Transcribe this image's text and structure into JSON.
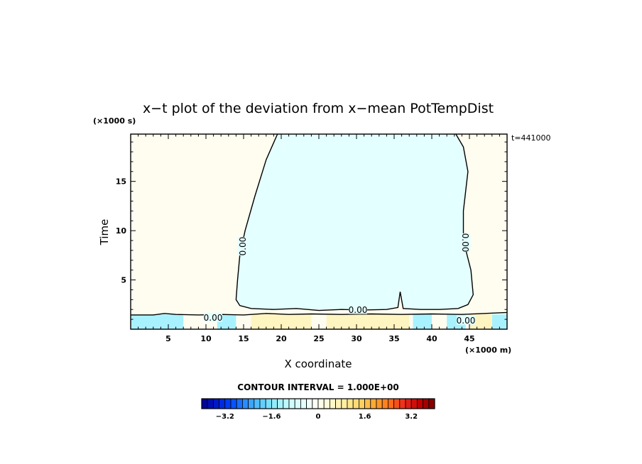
{
  "chart_data": {
    "type": "heatmap",
    "title": "x−t plot of the deviation from x−mean PotTempDist",
    "xlabel": "X coordinate",
    "ylabel": "Time",
    "x_unit": "(×1000 m)",
    "y_unit": "(×1000 s)",
    "time_stamp": "t=441000",
    "xlim": [
      0,
      50
    ],
    "ylim": [
      0,
      19.8
    ],
    "x_ticks": [
      "5",
      "10",
      "15",
      "20",
      "25",
      "30",
      "35",
      "40",
      "45"
    ],
    "x_tick_values": [
      5,
      10,
      15,
      20,
      25,
      30,
      35,
      40,
      45
    ],
    "y_ticks": [
      "5",
      "10",
      "15"
    ],
    "y_tick_values": [
      5,
      10,
      15
    ],
    "contour_interval_label": "CONTOUR INTERVAL = 1.000E+00",
    "contour_labels": [
      "0.00",
      "0.00",
      "0.00",
      "0.00",
      "0.00"
    ],
    "zero_contour_upper": [
      [
        19.5,
        19.8
      ],
      [
        18.0,
        17.2
      ],
      [
        16.5,
        13.5
      ],
      [
        15.2,
        10.0
      ],
      [
        14.5,
        7.5
      ],
      [
        14.2,
        5.0
      ],
      [
        14.0,
        3.0
      ],
      [
        14.5,
        2.4
      ],
      [
        16.0,
        2.1
      ],
      [
        19.0,
        2.0
      ],
      [
        22.0,
        2.1
      ],
      [
        25.0,
        1.9
      ],
      [
        28.0,
        2.0
      ],
      [
        31.0,
        1.95
      ],
      [
        34.0,
        2.0
      ],
      [
        35.5,
        2.2
      ],
      [
        35.8,
        3.8
      ],
      [
        36.2,
        2.1
      ],
      [
        38.5,
        2.0
      ],
      [
        41.0,
        2.0
      ],
      [
        43.5,
        2.1
      ],
      [
        44.8,
        2.5
      ],
      [
        45.5,
        3.5
      ],
      [
        45.2,
        6.0
      ],
      [
        44.2,
        9.0
      ],
      [
        44.2,
        12.0
      ],
      [
        44.8,
        16.0
      ],
      [
        44.2,
        18.5
      ],
      [
        43.2,
        19.8
      ]
    ],
    "zero_contour_lower": [
      [
        0,
        1.45
      ],
      [
        3,
        1.45
      ],
      [
        4.5,
        1.6
      ],
      [
        6,
        1.5
      ],
      [
        9,
        1.45
      ],
      [
        12,
        1.5
      ],
      [
        15,
        1.45
      ],
      [
        18,
        1.6
      ],
      [
        21,
        1.5
      ],
      [
        24,
        1.55
      ],
      [
        28,
        1.5
      ],
      [
        32,
        1.55
      ],
      [
        36,
        1.5
      ],
      [
        40,
        1.55
      ],
      [
        44,
        1.5
      ],
      [
        47,
        1.6
      ],
      [
        50,
        1.7
      ]
    ],
    "interior_region_sign": "negative",
    "exterior_region_sign": "positive",
    "bottom_band_ylim": [
      0,
      1.5
    ],
    "bottom_band_cyan_x": [
      [
        0,
        7
      ],
      [
        11.5,
        14
      ],
      [
        37.5,
        40
      ],
      [
        42,
        44.5
      ],
      [
        48,
        50
      ]
    ],
    "bottom_band_yellow_x": [
      [
        16,
        24
      ],
      [
        26,
        34
      ],
      [
        34,
        37
      ],
      [
        45,
        48
      ]
    ],
    "colorbar": {
      "min": -4,
      "max": 4,
      "n_bins": 40,
      "tick_labels": [
        "−3.2",
        "−1.6",
        "0",
        "1.6",
        "3.2"
      ],
      "tick_values": [
        -3.2,
        -1.6,
        0,
        1.6,
        3.2
      ],
      "colors": [
        "#000090",
        "#0018c8",
        "#0044ff",
        "#2a8cff",
        "#58c8ff",
        "#90ecff",
        "#c8fbff",
        "#e4ffff",
        "#fffff0",
        "#fff8c8",
        "#ffec98",
        "#ffcf60",
        "#ffa02c",
        "#ff6a1a",
        "#e8261a",
        "#c00000",
        "#780000"
      ],
      "field_color_negative": "#e4ffff",
      "field_color_positive": "#fffdf0",
      "field_color_positive_strong": "#fff5c0",
      "field_color_negative_strong": "#a8f2ff"
    }
  }
}
